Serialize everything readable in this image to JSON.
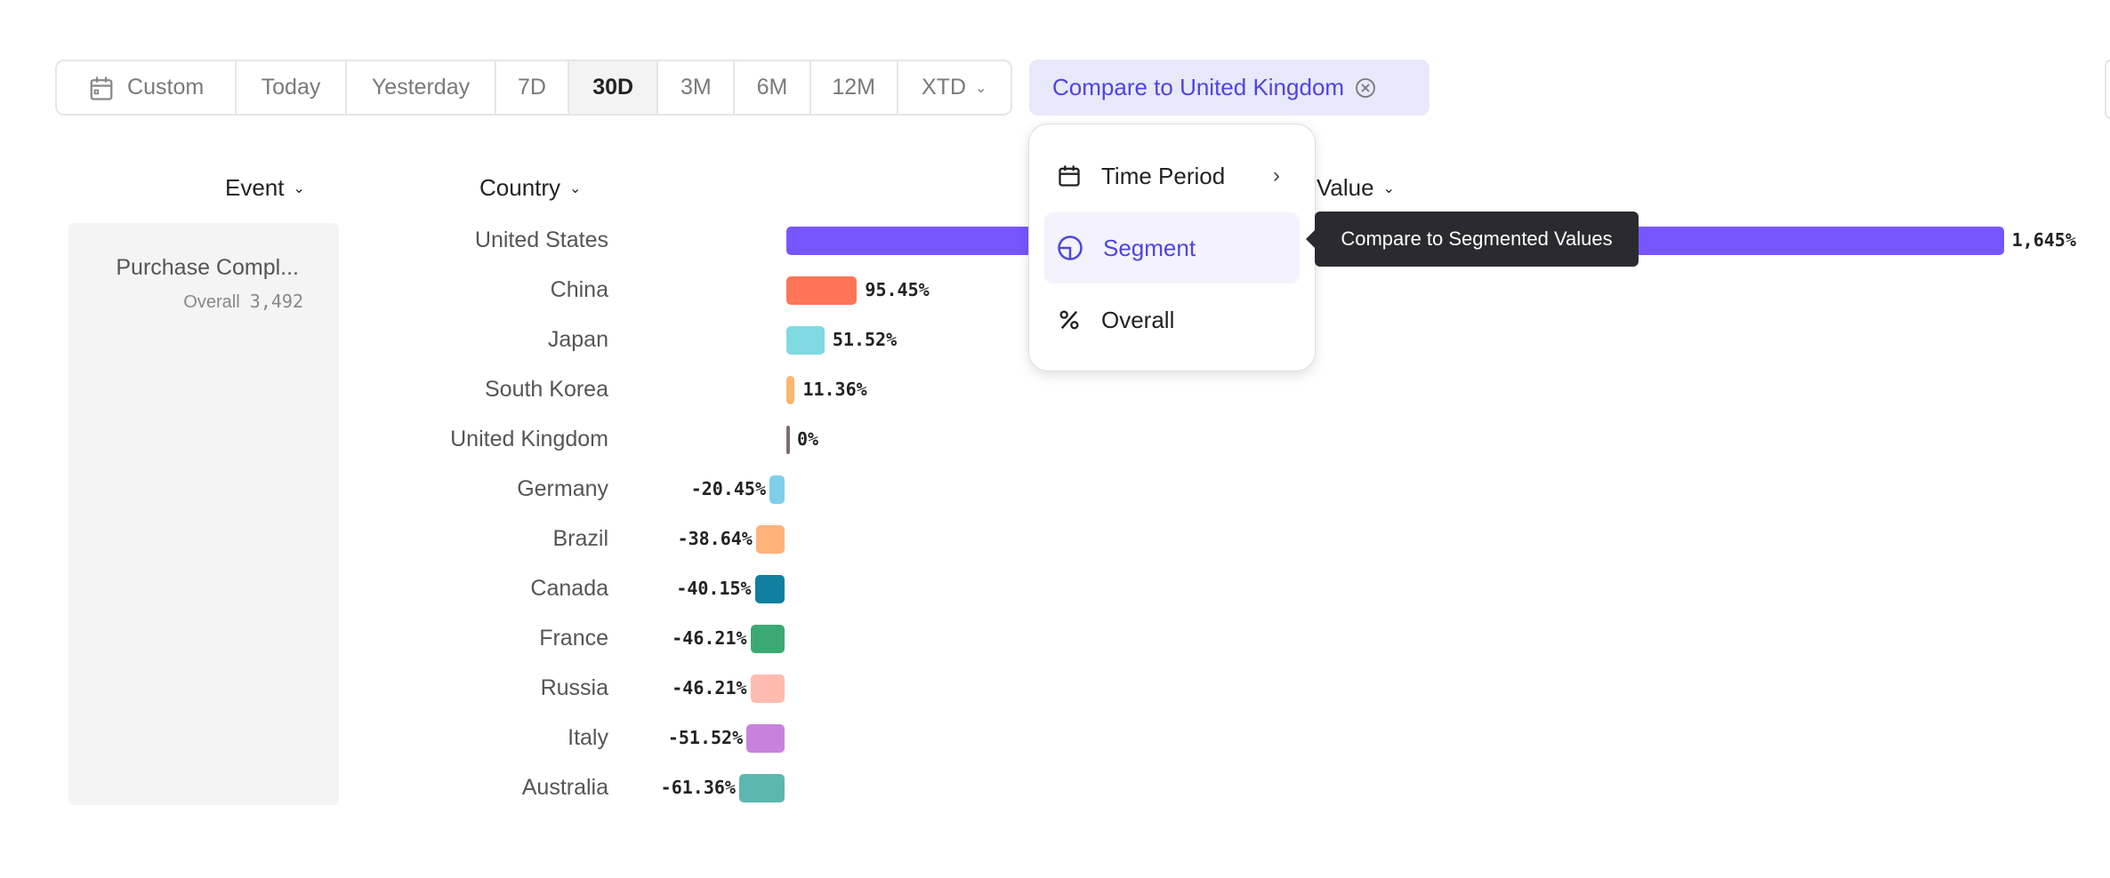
{
  "toolbar": {
    "segments": [
      {
        "label": "Custom",
        "icon": "calendar-icon"
      },
      {
        "label": "Today"
      },
      {
        "label": "Yesterday"
      },
      {
        "label": "7D"
      },
      {
        "label": "30D",
        "active": true
      },
      {
        "label": "3M"
      },
      {
        "label": "6M"
      },
      {
        "label": "12M"
      },
      {
        "label": "XTD",
        "icon": "chevron-down-icon"
      }
    ]
  },
  "compare_chip": {
    "label": "Compare to United Kingdom",
    "icon": "close-circle-icon"
  },
  "headers": {
    "event": "Event",
    "country": "Country",
    "value": "Value"
  },
  "event_panel": {
    "name": "Purchase Compl...",
    "overall_label": "Overall",
    "overall_value": "3,492"
  },
  "menu": {
    "items": [
      {
        "label": "Time Period",
        "icon": "calendar-icon",
        "submenu": true
      },
      {
        "label": "Segment",
        "icon": "segment-pie-icon",
        "selected": true
      },
      {
        "label": "Overall",
        "icon": "percent-icon"
      }
    ]
  },
  "tooltip": "Compare to Segmented Values",
  "chart_data": {
    "type": "bar",
    "orientation": "horizontal",
    "categories": [
      "United States",
      "China",
      "Japan",
      "South Korea",
      "United Kingdom",
      "Germany",
      "Brazil",
      "Canada",
      "France",
      "Russia",
      "Italy",
      "Australia"
    ],
    "values": [
      1645,
      95.45,
      51.52,
      11.36,
      0,
      -20.45,
      -38.64,
      -40.15,
      -46.21,
      -46.21,
      -51.52,
      -61.36
    ],
    "labels": [
      "1,645%",
      "95.45%",
      "51.52%",
      "11.36%",
      "0%",
      "-20.45%",
      "-38.64%",
      "-40.15%",
      "-46.21%",
      "-46.21%",
      "-51.52%",
      "-61.36%"
    ],
    "colors": [
      "#7856ff",
      "#ff7557",
      "#80dae1",
      "#fbb66f",
      "#7a6f73",
      "#7ecfe8",
      "#ffb27a",
      "#117fa0",
      "#3ba974",
      "#ffbbaf",
      "#c981de",
      "#5bb7af"
    ]
  }
}
